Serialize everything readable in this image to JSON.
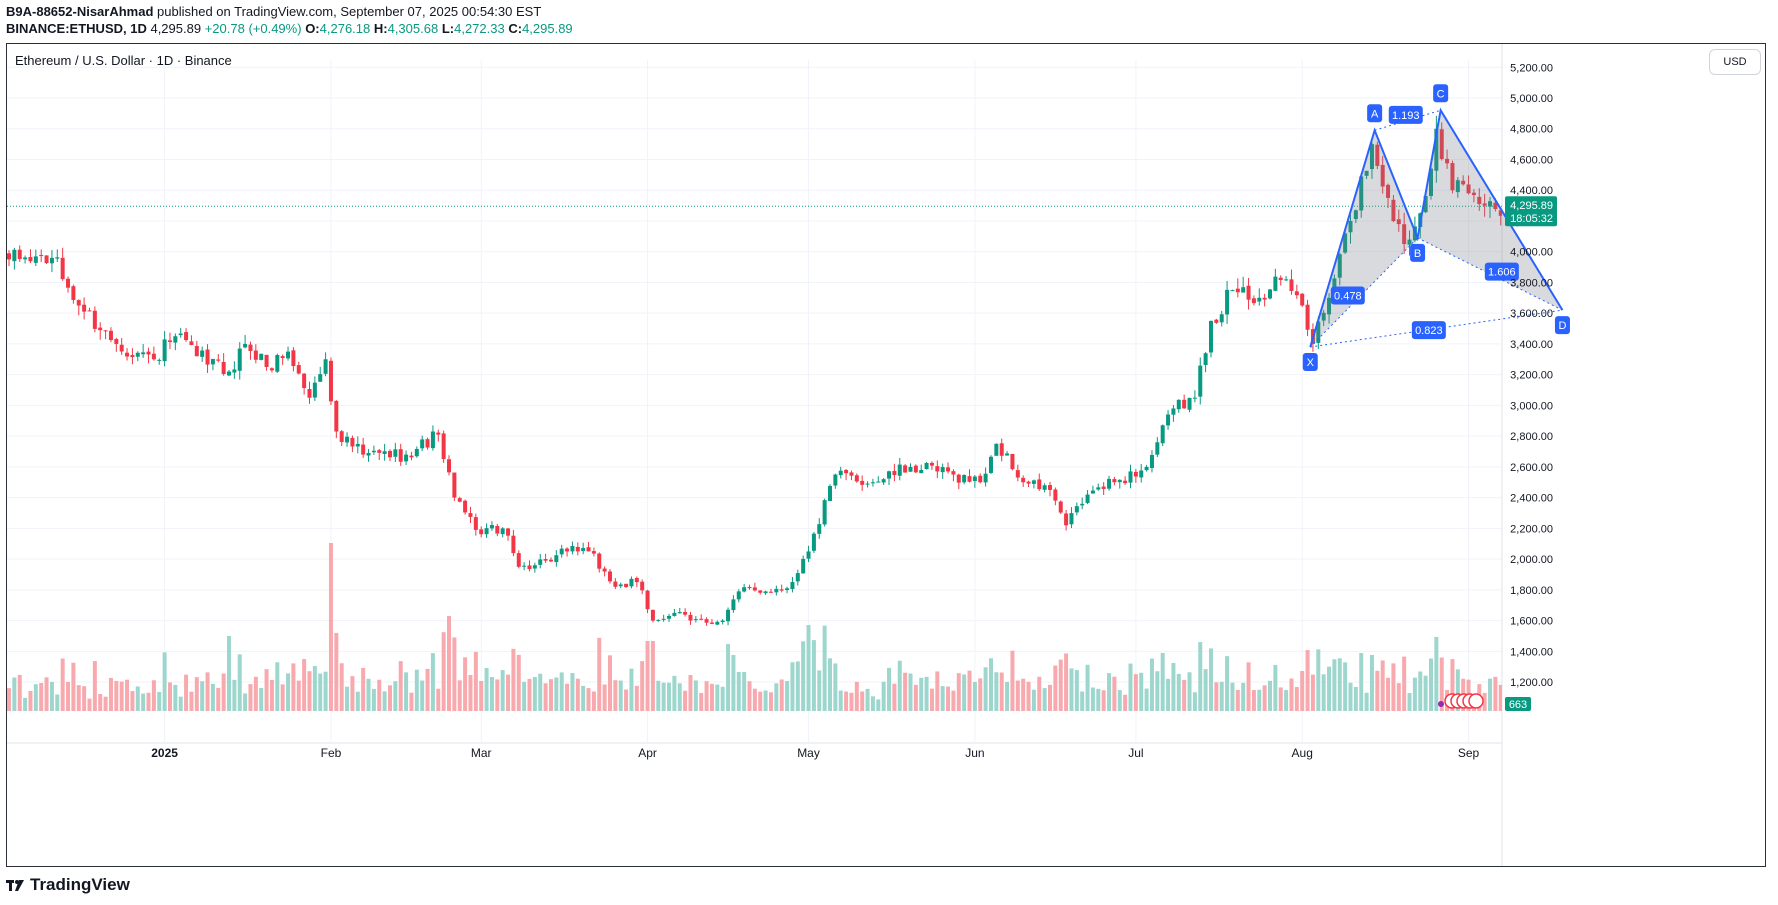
{
  "header": {
    "author": "B9A-88652-NisarAhmad",
    "published_text": "published on TradingView.com, September 07, 2025 00:54:30 EST"
  },
  "quote": {
    "symbol": "BINANCE:ETHUSD, 1D",
    "last": "4,295.89",
    "change": "+20.78 (+0.49%)",
    "o_label": "O:",
    "o": "4,276.18",
    "h_label": "H:",
    "h": "4,305.68",
    "l_label": "L:",
    "l": "4,272.33",
    "c_label": "C:",
    "c": "4,295.89"
  },
  "chart_title": "Ethereum / U.S. Dollar · 1D · Binance",
  "currency_button": "USD",
  "footer": {
    "brand": "TradingView"
  },
  "colors": {
    "up": "#089981",
    "down": "#f23645",
    "vol_up": "#9dd6cd",
    "vol_down": "#f7a9ae",
    "pattern": "#2962ff"
  },
  "chart_data": {
    "type": "candlestick",
    "ylim": [
      1150,
      5300
    ],
    "y_ticks": [
      "1,200.00",
      "1,400.00",
      "1,600.00",
      "1,800.00",
      "2,000.00",
      "2,200.00",
      "2,400.00",
      "2,600.00",
      "2,800.00",
      "3,000.00",
      "3,200.00",
      "3,400.00",
      "3,600.00",
      "3,800.00",
      "4,000.00",
      "4,200.00",
      "4,400.00",
      "4,600.00",
      "4,800.00",
      "5,000.00",
      "5,200.00"
    ],
    "x_ticks": [
      {
        "label": "2025",
        "index": 29
      },
      {
        "label": "Feb",
        "index": 60
      },
      {
        "label": "Mar",
        "index": 88
      },
      {
        "label": "Apr",
        "index": 119
      },
      {
        "label": "May",
        "index": 149
      },
      {
        "label": "Jun",
        "index": 180
      },
      {
        "label": "Jul",
        "index": 210
      },
      {
        "label": "Aug",
        "index": 241
      },
      {
        "label": "Sep",
        "index": 272
      }
    ],
    "price_label": {
      "value": 4295.89,
      "text": "4,295.89",
      "countdown": "18:05:32"
    },
    "volume_label": "663",
    "anchors": [
      {
        "i": 0,
        "p": 3950
      },
      {
        "i": 8,
        "p": 3960
      },
      {
        "i": 13,
        "p": 3650
      },
      {
        "i": 20,
        "p": 3400
      },
      {
        "i": 27,
        "p": 3300
      },
      {
        "i": 31,
        "p": 3450
      },
      {
        "i": 35,
        "p": 3320
      },
      {
        "i": 41,
        "p": 3220
      },
      {
        "i": 44,
        "p": 3400
      },
      {
        "i": 48,
        "p": 3250
      },
      {
        "i": 52,
        "p": 3350
      },
      {
        "i": 56,
        "p": 3050
      },
      {
        "i": 59,
        "p": 3300
      },
      {
        "i": 61,
        "p": 2830
      },
      {
        "i": 66,
        "p": 2680
      },
      {
        "i": 74,
        "p": 2680
      },
      {
        "i": 80,
        "p": 2810
      },
      {
        "i": 83,
        "p": 2400
      },
      {
        "i": 87,
        "p": 2190
      },
      {
        "i": 92,
        "p": 2200
      },
      {
        "i": 95,
        "p": 1950
      },
      {
        "i": 100,
        "p": 1990
      },
      {
        "i": 104,
        "p": 2050
      },
      {
        "i": 108,
        "p": 2050
      },
      {
        "i": 113,
        "p": 1820
      },
      {
        "i": 117,
        "p": 1850
      },
      {
        "i": 120,
        "p": 1600
      },
      {
        "i": 124,
        "p": 1650
      },
      {
        "i": 127,
        "p": 1600
      },
      {
        "i": 133,
        "p": 1600
      },
      {
        "i": 136,
        "p": 1790
      },
      {
        "i": 145,
        "p": 1810
      },
      {
        "i": 149,
        "p": 2050
      },
      {
        "i": 154,
        "p": 2550
      },
      {
        "i": 161,
        "p": 2500
      },
      {
        "i": 168,
        "p": 2600
      },
      {
        "i": 176,
        "p": 2550
      },
      {
        "i": 181,
        "p": 2500
      },
      {
        "i": 184,
        "p": 2750
      },
      {
        "i": 189,
        "p": 2500
      },
      {
        "i": 194,
        "p": 2450
      },
      {
        "i": 197,
        "p": 2220
      },
      {
        "i": 201,
        "p": 2420
      },
      {
        "i": 206,
        "p": 2500
      },
      {
        "i": 212,
        "p": 2600
      },
      {
        "i": 217,
        "p": 2980
      },
      {
        "i": 221,
        "p": 3050
      },
      {
        "i": 224,
        "p": 3550
      },
      {
        "i": 228,
        "p": 3750
      },
      {
        "i": 233,
        "p": 3700
      },
      {
        "i": 238,
        "p": 3820
      },
      {
        "i": 241,
        "p": 3650
      },
      {
        "i": 243,
        "p": 3400
      },
      {
        "i": 246,
        "p": 3700
      },
      {
        "i": 250,
        "p": 4200
      },
      {
        "i": 254,
        "p": 4700
      },
      {
        "i": 257,
        "p": 4350
      },
      {
        "i": 260,
        "p": 4050
      },
      {
        "i": 263,
        "p": 4250
      },
      {
        "i": 266,
        "p": 4800
      },
      {
        "i": 269,
        "p": 4400
      },
      {
        "i": 272,
        "p": 4380
      },
      {
        "i": 275,
        "p": 4300
      },
      {
        "i": 279,
        "p": 4296
      }
    ],
    "pattern": {
      "points": [
        {
          "label": "X",
          "i": 242.5,
          "p": 3380
        },
        {
          "label": "A",
          "i": 254.5,
          "p": 4790
        },
        {
          "label": "B",
          "i": 262.5,
          "p": 4090
        },
        {
          "label": "C",
          "i": 266.8,
          "p": 4920
        },
        {
          "label": "D",
          "i": 289.5,
          "p": 3620
        }
      ],
      "ratios": [
        {
          "text": "0.478",
          "i": 249.5,
          "p": 3715
        },
        {
          "text": "1.193",
          "i": 260.3,
          "p": 4890
        },
        {
          "text": "1.606",
          "i": 278.2,
          "p": 3870
        },
        {
          "text": "0.823",
          "i": 264.6,
          "p": 3490
        }
      ]
    }
  }
}
